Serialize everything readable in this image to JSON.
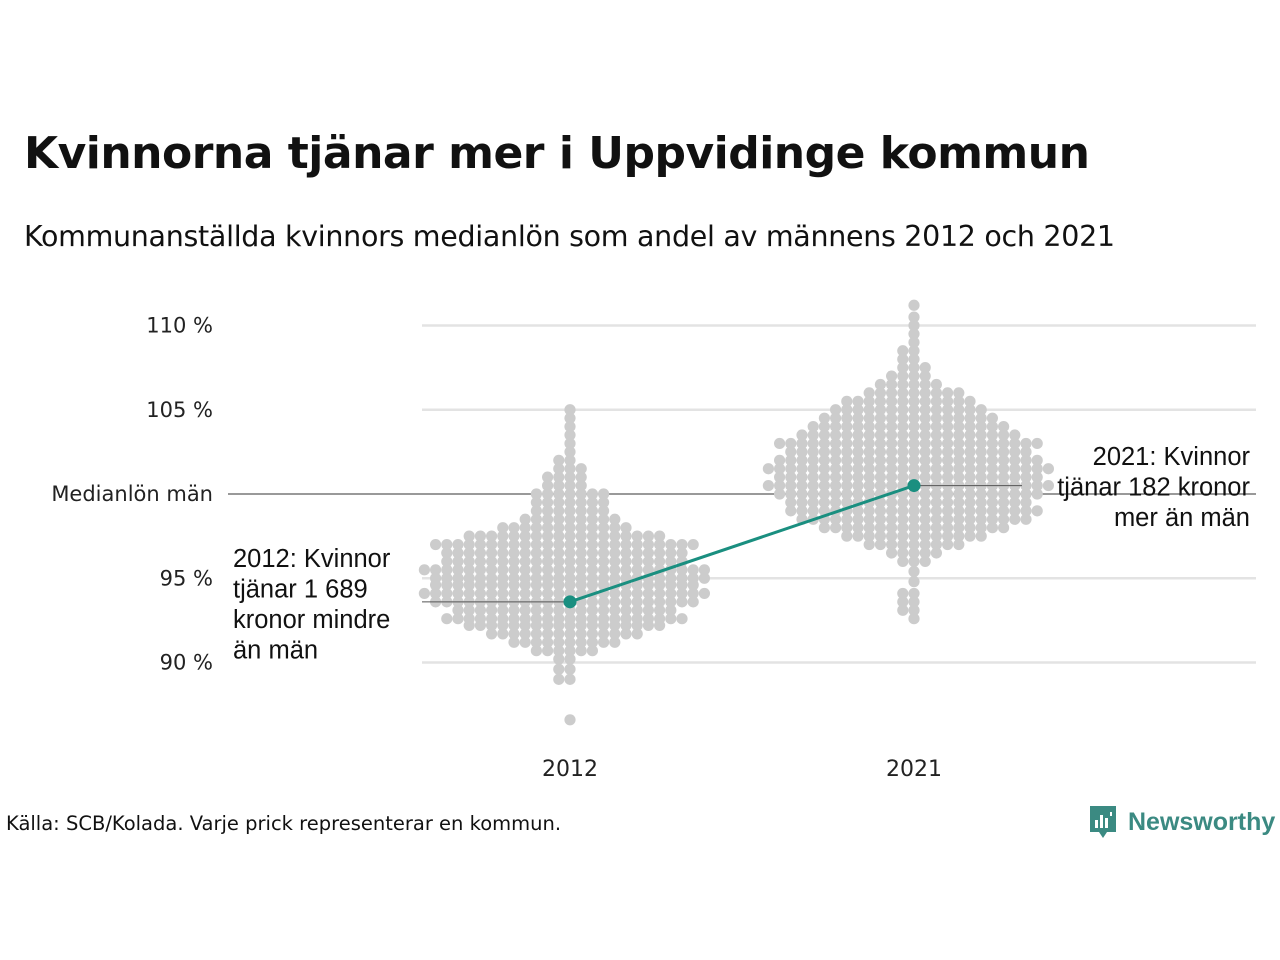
{
  "title": "Kvinnorna tjänar mer i Uppvidinge kommun",
  "subtitle": "Kommunanställda kvinnors medianlön som andel av männens 2012 och 2021",
  "source": "Källa: SCB/Kolada. Varje prick representerar en kommun.",
  "brand": {
    "name": "Newsworthy",
    "icon": "newsworthy-logo-icon",
    "color": "#3b8a82"
  },
  "chart_data": {
    "type": "scatter",
    "subtype": "beeswarm",
    "categories": [
      "2012",
      "2021"
    ],
    "y_unit": "%",
    "ylim": [
      86,
      112
    ],
    "yticks": [
      {
        "value": 110,
        "label": "110 %"
      },
      {
        "value": 105,
        "label": "105 %"
      },
      {
        "value": 100,
        "label": "Medianlön män"
      },
      {
        "value": 95,
        "label": "95 %"
      },
      {
        "value": 90,
        "label": "90 %"
      }
    ],
    "grid": true,
    "reference_line": {
      "value": 100,
      "label": "Medianlön män"
    },
    "colors": {
      "dots": "#cccccc",
      "highlight": "#1a8f80",
      "grid": "#e3e3e3",
      "reference": "#333333"
    },
    "highlight": {
      "name": "Uppvidinge",
      "points": [
        {
          "x": "2012",
          "y": 93.6
        },
        {
          "x": "2021",
          "y": 100.5
        }
      ],
      "annotations": [
        {
          "x": "2012",
          "lines": [
            "2012: Kvinnor",
            "tjänar 1 689",
            "kronor mindre",
            "än män"
          ]
        },
        {
          "x": "2021",
          "lines": [
            "2021: Kvinnor",
            "tjänar 182 kronor",
            "mer än män"
          ]
        }
      ]
    },
    "series": [
      {
        "name": "2012",
        "distribution": [
          {
            "y": 86.6,
            "n": 1
          },
          {
            "y": 89.0,
            "n": 2
          },
          {
            "y": 89.6,
            "n": 2
          },
          {
            "y": 90.2,
            "n": 2
          },
          {
            "y": 90.7,
            "n": 6
          },
          {
            "y": 91.2,
            "n": 10
          },
          {
            "y": 91.7,
            "n": 14
          },
          {
            "y": 92.2,
            "n": 18
          },
          {
            "y": 92.6,
            "n": 22
          },
          {
            "y": 93.1,
            "n": 20
          },
          {
            "y": 93.6,
            "n": 24
          },
          {
            "y": 94.1,
            "n": 26
          },
          {
            "y": 94.6,
            "n": 24
          },
          {
            "y": 95.0,
            "n": 25
          },
          {
            "y": 95.5,
            "n": 26
          },
          {
            "y": 96.0,
            "n": 22
          },
          {
            "y": 96.5,
            "n": 22
          },
          {
            "y": 97.0,
            "n": 24
          },
          {
            "y": 97.5,
            "n": 18
          },
          {
            "y": 98.0,
            "n": 12
          },
          {
            "y": 98.5,
            "n": 9
          },
          {
            "y": 99.0,
            "n": 7
          },
          {
            "y": 99.5,
            "n": 7
          },
          {
            "y": 100.0,
            "n": 7
          },
          {
            "y": 100.5,
            "n": 4
          },
          {
            "y": 101.0,
            "n": 4
          },
          {
            "y": 101.5,
            "n": 3
          },
          {
            "y": 102.0,
            "n": 2
          },
          {
            "y": 102.5,
            "n": 1
          },
          {
            "y": 103.0,
            "n": 1
          },
          {
            "y": 103.5,
            "n": 1
          },
          {
            "y": 104.0,
            "n": 1
          },
          {
            "y": 104.5,
            "n": 1
          },
          {
            "y": 105.0,
            "n": 1
          }
        ]
      },
      {
        "name": "2021",
        "distribution": [
          {
            "y": 92.6,
            "n": 1
          },
          {
            "y": 93.1,
            "n": 2
          },
          {
            "y": 93.6,
            "n": 2
          },
          {
            "y": 94.1,
            "n": 2
          },
          {
            "y": 94.8,
            "n": 1
          },
          {
            "y": 95.4,
            "n": 1
          },
          {
            "y": 96.0,
            "n": 3
          },
          {
            "y": 96.5,
            "n": 5
          },
          {
            "y": 97.0,
            "n": 9
          },
          {
            "y": 97.5,
            "n": 13
          },
          {
            "y": 98.0,
            "n": 17
          },
          {
            "y": 98.5,
            "n": 21
          },
          {
            "y": 99.0,
            "n": 23
          },
          {
            "y": 99.5,
            "n": 22
          },
          {
            "y": 100.0,
            "n": 24
          },
          {
            "y": 100.5,
            "n": 26
          },
          {
            "y": 101.0,
            "n": 24
          },
          {
            "y": 101.5,
            "n": 26
          },
          {
            "y": 102.0,
            "n": 24
          },
          {
            "y": 102.5,
            "n": 22
          },
          {
            "y": 103.0,
            "n": 24
          },
          {
            "y": 103.5,
            "n": 20
          },
          {
            "y": 104.0,
            "n": 18
          },
          {
            "y": 104.5,
            "n": 16
          },
          {
            "y": 105.0,
            "n": 14
          },
          {
            "y": 105.5,
            "n": 12
          },
          {
            "y": 106.0,
            "n": 9
          },
          {
            "y": 106.5,
            "n": 6
          },
          {
            "y": 107.0,
            "n": 4
          },
          {
            "y": 107.5,
            "n": 3
          },
          {
            "y": 108.0,
            "n": 2
          },
          {
            "y": 108.5,
            "n": 2
          },
          {
            "y": 109.0,
            "n": 1
          },
          {
            "y": 109.5,
            "n": 1
          },
          {
            "y": 110.0,
            "n": 1
          },
          {
            "y": 110.5,
            "n": 1
          },
          {
            "y": 111.2,
            "n": 1
          }
        ]
      }
    ]
  }
}
